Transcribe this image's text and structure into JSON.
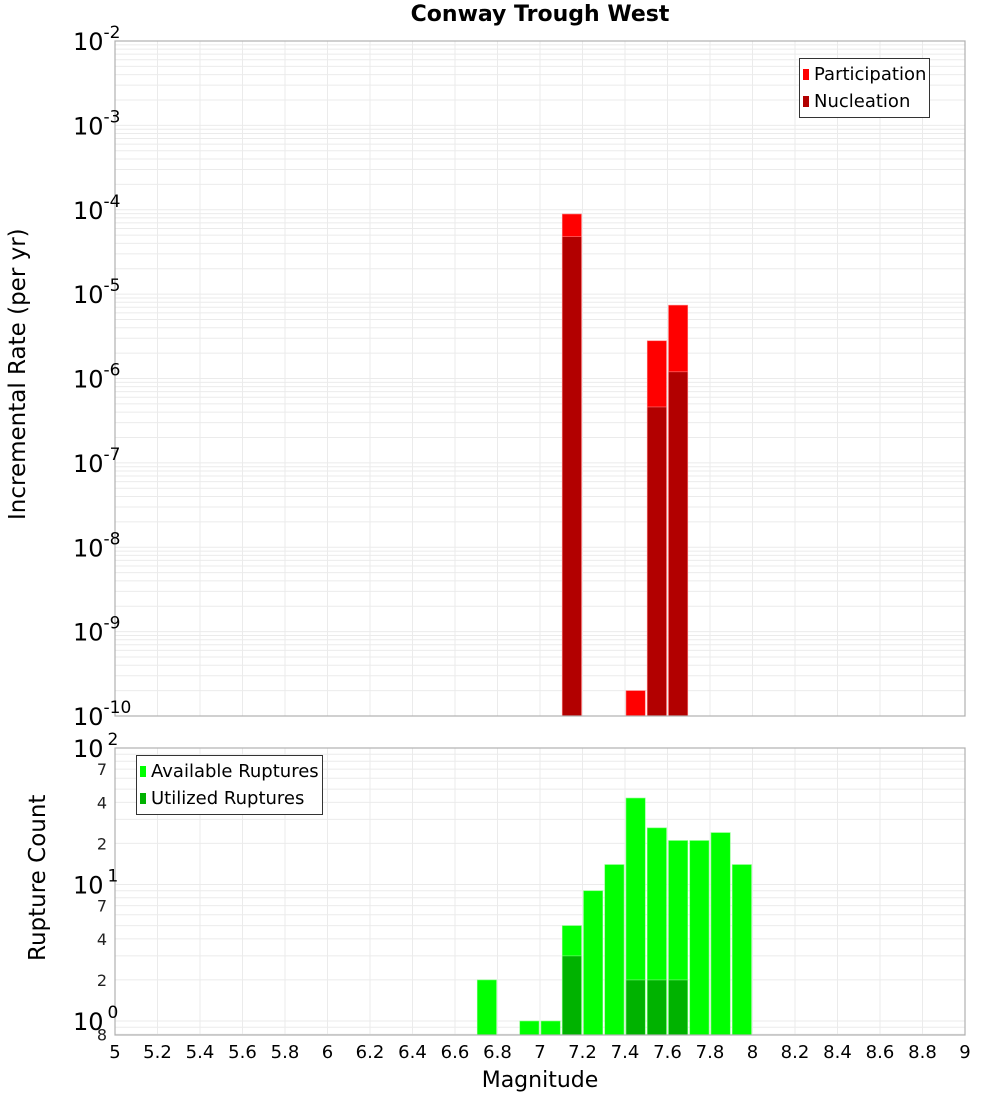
{
  "title": "Conway Trough West",
  "colors": {
    "participation": "#ff0000",
    "nucleation": "#b20000",
    "available": "#00ff00",
    "utilized": "#00b200",
    "grid": "#ebebeb",
    "axis": "#b0b0b0"
  },
  "top_panel": {
    "ylabel": "Incremental Rate (per yr)",
    "legend": [
      {
        "label": "Participation",
        "color": "#ff0000"
      },
      {
        "label": "Nucleation",
        "color": "#b20000"
      }
    ],
    "ytick_labels": [
      {
        "base": "10",
        "exp": "-2"
      },
      {
        "base": "10",
        "exp": "-3"
      },
      {
        "base": "10",
        "exp": "-4"
      },
      {
        "base": "10",
        "exp": "-5"
      },
      {
        "base": "10",
        "exp": "-6"
      },
      {
        "base": "10",
        "exp": "-7"
      },
      {
        "base": "10",
        "exp": "-8"
      },
      {
        "base": "10",
        "exp": "-9"
      },
      {
        "base": "10",
        "exp": "-10"
      }
    ]
  },
  "bottom_panel": {
    "ylabel": "Rupture Count",
    "legend": [
      {
        "label": "Available Ruptures",
        "color": "#00ff00"
      },
      {
        "label": "Utilized Ruptures",
        "color": "#00b200"
      }
    ],
    "ytick_major": [
      {
        "value": 100,
        "base": "10",
        "exp": "2"
      },
      {
        "value": 10,
        "base": "10",
        "exp": "1"
      },
      {
        "value": 1,
        "base": "10",
        "exp": "0"
      }
    ],
    "ytick_minor": [
      {
        "value": 70,
        "label": "7"
      },
      {
        "value": 40,
        "label": "4"
      },
      {
        "value": 20,
        "label": "2"
      },
      {
        "value": 7,
        "label": "7"
      },
      {
        "value": 4,
        "label": "4"
      },
      {
        "value": 2,
        "label": "2"
      },
      {
        "value": 0.8,
        "label": "8"
      }
    ]
  },
  "xlabel": "Magnitude",
  "xtick_labels": [
    "5",
    "5.2",
    "5.4",
    "5.6",
    "5.8",
    "6",
    "6.2",
    "6.4",
    "6.6",
    "6.8",
    "7",
    "7.2",
    "7.4",
    "7.6",
    "7.8",
    "8",
    "8.2",
    "8.4",
    "8.6",
    "8.8",
    "9"
  ],
  "chart_data": [
    {
      "type": "bar",
      "title": "Conway Trough West",
      "xlabel": "Magnitude",
      "ylabel": "Incremental Rate (per yr)",
      "yscale": "log",
      "xlim": [
        5,
        9
      ],
      "ylim": [
        1e-10,
        0.01
      ],
      "bin_width": 0.1,
      "legend_position": "top-right",
      "grid": true,
      "x": [
        7.15,
        7.45,
        7.55,
        7.65
      ],
      "series": [
        {
          "name": "Participation",
          "color": "#ff0000",
          "values": [
            8.9e-05,
            2e-10,
            2.8e-06,
            7.4e-06
          ]
        },
        {
          "name": "Nucleation",
          "color": "#b20000",
          "values": [
            4.8e-05,
            null,
            4.6e-07,
            1.2e-06
          ]
        }
      ]
    },
    {
      "type": "bar",
      "title": "",
      "xlabel": "Magnitude",
      "ylabel": "Rupture Count",
      "yscale": "log",
      "xlim": [
        5,
        9
      ],
      "ylim": [
        0.8,
        100
      ],
      "bin_width": 0.1,
      "legend_position": "top-left",
      "grid": true,
      "x": [
        6.75,
        6.95,
        7.05,
        7.15,
        7.25,
        7.35,
        7.45,
        7.55,
        7.65,
        7.75,
        7.85,
        7.95
      ],
      "series": [
        {
          "name": "Available Ruptures",
          "color": "#00ff00",
          "values": [
            2,
            1,
            1,
            5,
            9,
            14,
            43,
            26,
            21,
            21,
            24,
            14
          ]
        },
        {
          "name": "Utilized Ruptures",
          "color": "#00b200",
          "values": [
            null,
            null,
            null,
            3,
            null,
            null,
            2,
            2,
            2,
            null,
            null,
            null
          ]
        }
      ]
    }
  ]
}
